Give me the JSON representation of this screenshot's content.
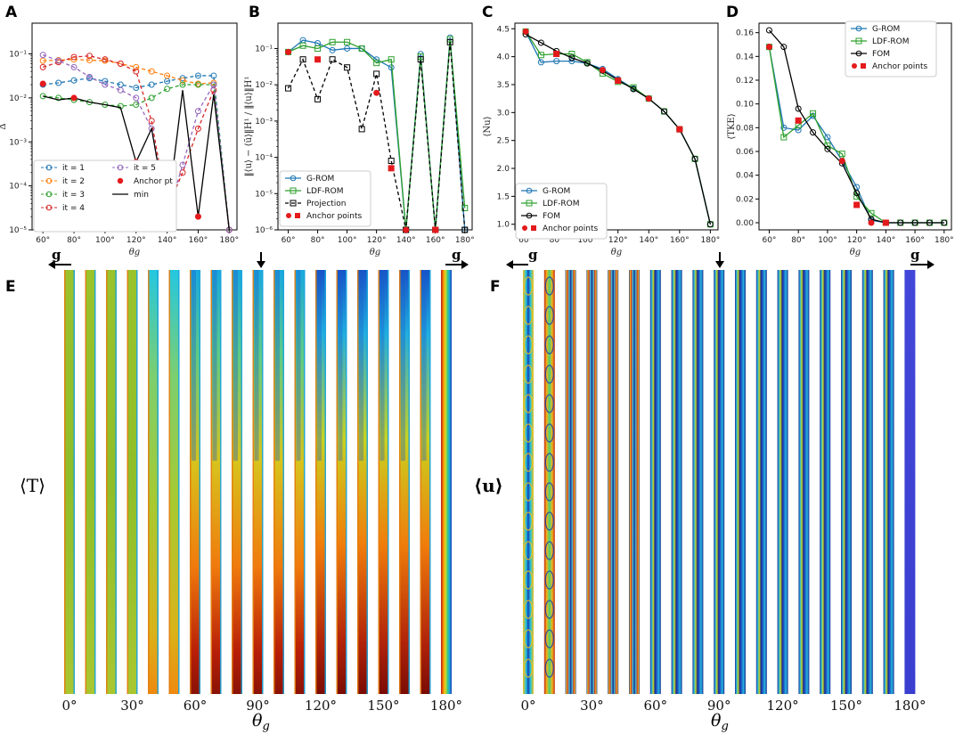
{
  "figure_labels": {
    "gravity": "g",
    "field_T": "⟨T⟩",
    "field_u": "⟨u⟩",
    "theta_axis": "θg"
  },
  "colors": {
    "it1": "#1f77b4",
    "it2": "#ff7f0e",
    "it3": "#2ca02c",
    "it4": "#d62728",
    "it5": "#9467bd",
    "grom": "#1f77b4",
    "ldf": "#2ca02c",
    "fom": "#000000",
    "anchor": "#e41a1c"
  },
  "chart_data": [
    {
      "panel": "A",
      "type": "line",
      "title": "",
      "xlabel": "θg",
      "ylabel": "Δ",
      "yscale": "log",
      "xlim": [
        53,
        185
      ],
      "ylim": [
        1e-05,
        0.5
      ],
      "xticks": [
        60,
        80,
        100,
        120,
        140,
        160,
        180
      ],
      "xtick_labels": [
        "60°",
        "80°",
        "100°",
        "120°",
        "140°",
        "160°",
        "180°"
      ],
      "yticks": [
        1e-05,
        0.0001,
        0.001,
        0.01,
        0.1
      ],
      "ytick_labels": [
        "10⁻⁵",
        "10⁻⁴",
        "10⁻³",
        "10⁻²",
        "10⁻¹"
      ],
      "x": [
        60,
        70,
        80,
        90,
        100,
        110,
        120,
        130,
        140,
        150,
        160,
        170,
        180
      ],
      "series": [
        {
          "name": "it = 1",
          "color": "#1f77b4",
          "style": "dashed",
          "marker": "circle",
          "values": [
            0.02,
            0.022,
            0.025,
            0.028,
            0.024,
            0.02,
            0.017,
            0.02,
            0.024,
            0.028,
            0.032,
            0.032,
            1e-05
          ]
        },
        {
          "name": "it = 2",
          "color": "#ff7f0e",
          "style": "dashed",
          "marker": "circle",
          "values": [
            0.07,
            0.072,
            0.075,
            0.072,
            0.07,
            0.06,
            0.05,
            0.04,
            0.032,
            0.025,
            0.021,
            0.022,
            1e-05
          ]
        },
        {
          "name": "it = 3",
          "color": "#2ca02c",
          "style": "dashed",
          "marker": "circle",
          "values": [
            0.011,
            0.01,
            0.009,
            0.008,
            0.007,
            0.0065,
            0.007,
            0.01,
            0.016,
            0.02,
            0.02,
            0.02,
            1e-05
          ]
        },
        {
          "name": "it = 4",
          "color": "#d62728",
          "style": "dashed",
          "marker": "circle",
          "values": [
            0.05,
            0.065,
            0.085,
            0.09,
            0.075,
            0.06,
            0.04,
            0.003,
            3e-05,
            0.0002,
            0.002,
            0.015,
            1e-05
          ]
        },
        {
          "name": "it = 5",
          "color": "#9467bd",
          "style": "dashed",
          "marker": "circle",
          "values": [
            0.095,
            0.07,
            0.05,
            0.03,
            0.02,
            0.015,
            0.01,
            0.002,
            2e-05,
            0.0003,
            0.005,
            0.02,
            1e-05
          ]
        },
        {
          "name": "min",
          "color": "#000000",
          "style": "solid",
          "marker": "none",
          "values": [
            0.011,
            0.009,
            0.01,
            0.008,
            0.007,
            0.006,
            0.00035,
            0.002,
            2e-05,
            0.015,
            2e-05,
            0.012,
            1e-05
          ]
        }
      ],
      "anchors": [
        {
          "x": 60,
          "y": 0.021
        },
        {
          "x": 80,
          "y": 0.01
        },
        {
          "x": 120,
          "y": 0.00035
        },
        {
          "x": 160,
          "y": 2e-05
        }
      ],
      "legend": [
        "it = 1",
        "it = 2",
        "it = 3",
        "it = 4",
        "it = 5",
        "Anchor pt",
        "min"
      ],
      "legend_position": "bottom-left"
    },
    {
      "panel": "B",
      "type": "line",
      "xlabel": "θg",
      "ylabel": "‖⟨u⟩ − ⟨ũ⟩‖H¹ / ‖⟨u⟩‖H¹",
      "yscale": "log",
      "xlim": [
        53,
        185
      ],
      "ylim": [
        1e-06,
        0.5
      ],
      "xticks": [
        60,
        80,
        100,
        120,
        140,
        160,
        180
      ],
      "xtick_labels": [
        "60°",
        "80°",
        "100°",
        "120°",
        "140°",
        "160°",
        "180°"
      ],
      "yticks": [
        1e-06,
        1e-05,
        0.0001,
        0.001,
        0.01,
        0.1
      ],
      "ytick_labels": [
        "10⁻⁶",
        "10⁻⁵",
        "10⁻⁴",
        "10⁻³",
        "10⁻²",
        "10⁻¹"
      ],
      "x": [
        60,
        70,
        80,
        90,
        100,
        110,
        120,
        130,
        140,
        150,
        160,
        170,
        180
      ],
      "series": [
        {
          "name": "G-ROM",
          "color": "#1f77b4",
          "style": "solid",
          "marker": "circle",
          "values": [
            0.08,
            0.17,
            0.14,
            0.09,
            0.1,
            0.1,
            0.05,
            0.03,
            1e-06,
            0.07,
            1e-06,
            0.2,
            1e-06
          ]
        },
        {
          "name": "LDF-ROM",
          "color": "#2ca02c",
          "style": "solid",
          "marker": "square",
          "values": [
            0.08,
            0.12,
            0.1,
            0.15,
            0.15,
            0.1,
            0.04,
            0.05,
            1e-06,
            0.06,
            1e-06,
            0.18,
            4e-06
          ]
        },
        {
          "name": "Projection",
          "color": "#000000",
          "style": "dashed",
          "marker": "square",
          "values": [
            0.008,
            0.05,
            0.004,
            0.05,
            0.03,
            0.0006,
            0.02,
            8e-05,
            1e-06,
            0.05,
            1e-06,
            0.15,
            1e-06
          ]
        }
      ],
      "anchors": [
        {
          "x": 60,
          "y": 0.08
        },
        {
          "x": 80,
          "y": 0.05
        },
        {
          "x": 120,
          "y": 0.006
        },
        {
          "x": 130,
          "y": 5e-05
        },
        {
          "x": 140,
          "y": 1e-06
        },
        {
          "x": 160,
          "y": 1e-06
        }
      ],
      "legend": [
        "G-ROM",
        "LDF-ROM",
        "Projection",
        "Anchor points"
      ],
      "legend_position": "bottom-left"
    },
    {
      "panel": "C",
      "type": "line",
      "xlabel": "θg",
      "ylabel": "⟨Nu⟩",
      "yscale": "linear",
      "xlim": [
        53,
        185
      ],
      "ylim": [
        0.9,
        4.6
      ],
      "xticks": [
        60,
        80,
        100,
        120,
        140,
        160,
        180
      ],
      "xtick_labels": [
        "60°",
        "80°",
        "100°",
        "120°",
        "140°",
        "160°",
        "180°"
      ],
      "yticks": [
        1.0,
        1.5,
        2.0,
        2.5,
        3.0,
        3.5,
        4.0,
        4.5
      ],
      "ytick_labels": [
        "1.0",
        "1.5",
        "2.0",
        "2.5",
        "3.0",
        "3.5",
        "4.0",
        "4.5"
      ],
      "x": [
        60,
        70,
        80,
        90,
        100,
        110,
        120,
        130,
        140,
        150,
        160,
        170,
        180
      ],
      "series": [
        {
          "name": "G-ROM",
          "color": "#1f77b4",
          "style": "solid",
          "marker": "circle",
          "values": [
            4.45,
            3.9,
            3.92,
            3.92,
            3.88,
            3.78,
            3.6,
            3.43,
            3.25,
            3.02,
            2.7,
            2.17,
            1.0
          ]
        },
        {
          "name": "LDF-ROM",
          "color": "#2ca02c",
          "style": "solid",
          "marker": "square",
          "values": [
            4.45,
            4.03,
            4.05,
            4.05,
            3.9,
            3.7,
            3.55,
            3.45,
            3.25,
            3.02,
            2.7,
            2.17,
            1.0
          ]
        },
        {
          "name": "FOM",
          "color": "#000000",
          "style": "solid",
          "marker": "circle",
          "values": [
            4.4,
            4.25,
            4.1,
            3.98,
            3.88,
            3.75,
            3.58,
            3.42,
            3.25,
            3.02,
            2.7,
            2.17,
            1.0
          ]
        }
      ],
      "anchors": [
        {
          "x": 60,
          "y": 4.45
        },
        {
          "x": 80,
          "y": 4.05
        },
        {
          "x": 110,
          "y": 3.76
        },
        {
          "x": 120,
          "y": 3.57
        },
        {
          "x": 140,
          "y": 3.25
        },
        {
          "x": 160,
          "y": 2.7
        }
      ],
      "legend": [
        "G-ROM",
        "LDF-ROM",
        "FOM",
        "Anchor points"
      ],
      "legend_position": "bottom-left"
    },
    {
      "panel": "D",
      "type": "line",
      "xlabel": "θg",
      "ylabel": "⟨TKE⟩",
      "yscale": "linear",
      "xlim": [
        53,
        185
      ],
      "ylim": [
        -0.006,
        0.168
      ],
      "xticks": [
        60,
        80,
        100,
        120,
        140,
        160,
        180
      ],
      "xtick_labels": [
        "60°",
        "80°",
        "100°",
        "120°",
        "140°",
        "160°",
        "180°"
      ],
      "yticks": [
        0.0,
        0.02,
        0.04,
        0.06,
        0.08,
        0.1,
        0.12,
        0.14,
        0.16
      ],
      "ytick_labels": [
        "0.00",
        "0.02",
        "0.04",
        "0.06",
        "0.08",
        "0.10",
        "0.12",
        "0.14",
        "0.16"
      ],
      "x": [
        60,
        70,
        80,
        90,
        100,
        110,
        120,
        130,
        140,
        150,
        160,
        170,
        180
      ],
      "series": [
        {
          "name": "G-ROM",
          "color": "#1f77b4",
          "style": "solid",
          "marker": "circle",
          "values": [
            0.148,
            0.08,
            0.078,
            0.09,
            0.072,
            0.052,
            0.03,
            0.002,
            0.0,
            0.0,
            0.0,
            0.0,
            0.0
          ]
        },
        {
          "name": "LDF-ROM",
          "color": "#2ca02c",
          "style": "solid",
          "marker": "square",
          "values": [
            0.148,
            0.072,
            0.082,
            0.092,
            0.065,
            0.058,
            0.022,
            0.008,
            0.0,
            0.0,
            0.0,
            0.0,
            0.0
          ]
        },
        {
          "name": "FOM",
          "color": "#000000",
          "style": "solid",
          "marker": "circle",
          "values": [
            0.162,
            0.148,
            0.096,
            0.076,
            0.062,
            0.05,
            0.025,
            0.003,
            0.0,
            0.0,
            0.0,
            0.0,
            0.0
          ]
        }
      ],
      "anchors": [
        {
          "x": 60,
          "y": 0.148
        },
        {
          "x": 80,
          "y": 0.086
        },
        {
          "x": 110,
          "y": 0.052
        },
        {
          "x": 120,
          "y": 0.015
        },
        {
          "x": 130,
          "y": 0.0
        },
        {
          "x": 140,
          "y": 0.0
        }
      ],
      "legend": [
        "G-ROM",
        "LDF-ROM",
        "FOM",
        "Anchor points"
      ],
      "legend_position": "top-right"
    },
    {
      "panel": "E",
      "type": "heatmap",
      "field": "⟨T⟩",
      "xlabel": "θg",
      "angle_labels": [
        "0°",
        "30°",
        "60°",
        "90°",
        "120°",
        "150°",
        "180°"
      ],
      "count": 19
    },
    {
      "panel": "F",
      "type": "heatmap",
      "field": "⟨u⟩",
      "xlabel": "θg",
      "angle_labels": [
        "0°",
        "30°",
        "60°",
        "90°",
        "120°",
        "150°",
        "180°"
      ],
      "count": 19
    }
  ]
}
